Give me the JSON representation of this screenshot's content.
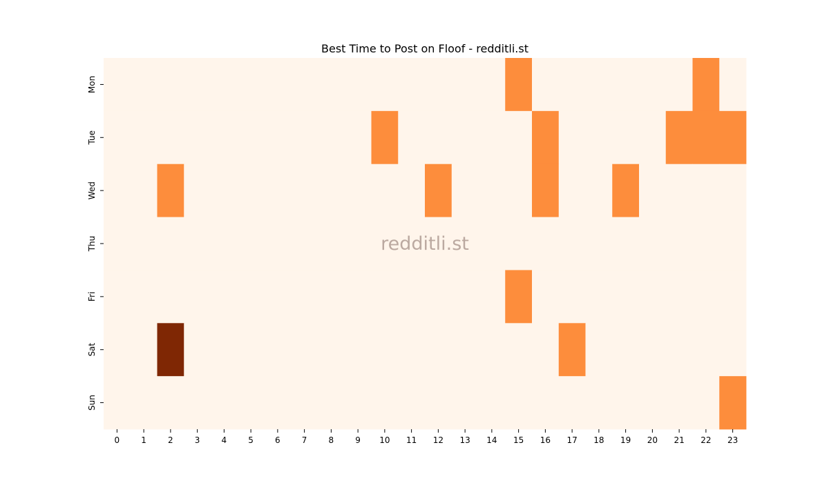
{
  "chart_data": {
    "type": "heatmap",
    "title": "Best Time to Post on Floof - redditli.st",
    "xlabel": "",
    "ylabel": "",
    "x": [
      "0",
      "1",
      "2",
      "3",
      "4",
      "5",
      "6",
      "7",
      "8",
      "9",
      "10",
      "11",
      "12",
      "13",
      "14",
      "15",
      "16",
      "17",
      "18",
      "19",
      "20",
      "21",
      "22",
      "23"
    ],
    "y": [
      "Mon",
      "Tue",
      "Wed",
      "Thu",
      "Fri",
      "Sat",
      "Sun"
    ],
    "values": [
      [
        0,
        0,
        0,
        0,
        0,
        0,
        0,
        0,
        0,
        0,
        0,
        0,
        0,
        0,
        0,
        1,
        0,
        0,
        0,
        0,
        0,
        0,
        1,
        0
      ],
      [
        0,
        0,
        0,
        0,
        0,
        0,
        0,
        0,
        0,
        0,
        1,
        0,
        0,
        0,
        0,
        0,
        1,
        0,
        0,
        0,
        0,
        1,
        1,
        1
      ],
      [
        0,
        0,
        1,
        0,
        0,
        0,
        0,
        0,
        0,
        0,
        0,
        0,
        1,
        0,
        0,
        0,
        1,
        0,
        0,
        1,
        0,
        0,
        0,
        0
      ],
      [
        0,
        0,
        0,
        0,
        0,
        0,
        0,
        0,
        0,
        0,
        0,
        0,
        0,
        0,
        0,
        0,
        0,
        0,
        0,
        0,
        0,
        0,
        0,
        0
      ],
      [
        0,
        0,
        0,
        0,
        0,
        0,
        0,
        0,
        0,
        0,
        0,
        0,
        0,
        0,
        0,
        1,
        0,
        0,
        0,
        0,
        0,
        0,
        0,
        0
      ],
      [
        0,
        0,
        2,
        0,
        0,
        0,
        0,
        0,
        0,
        0,
        0,
        0,
        0,
        0,
        0,
        0,
        0,
        1,
        0,
        0,
        0,
        0,
        0,
        0
      ],
      [
        0,
        0,
        0,
        0,
        0,
        0,
        0,
        0,
        0,
        0,
        0,
        0,
        0,
        0,
        0,
        0,
        0,
        0,
        0,
        0,
        0,
        0,
        0,
        1
      ]
    ],
    "colormap": [
      "#fff5eb",
      "#fd8d3c",
      "#7f2704"
    ],
    "legend": "none",
    "grid": false,
    "watermark": "redditli.st"
  }
}
